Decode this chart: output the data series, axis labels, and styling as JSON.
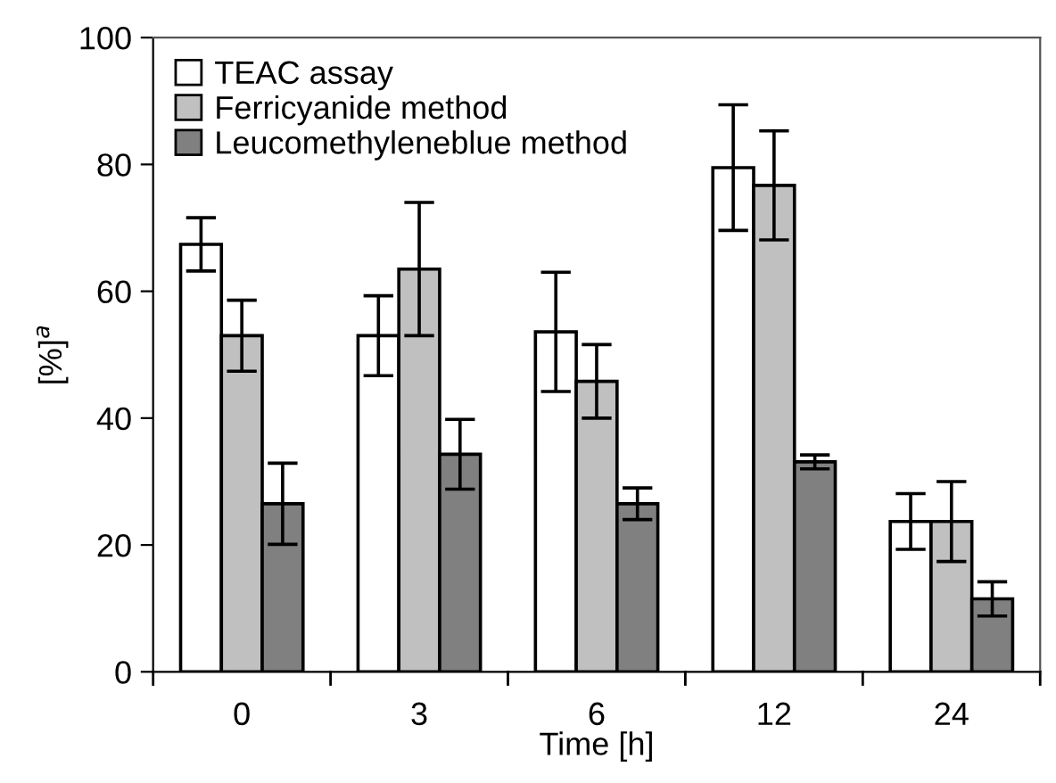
{
  "chart_data": {
    "type": "bar",
    "xlabel": "Time [h]",
    "ylabel": "[%]$^{a}$",
    "categories": [
      "0",
      "3",
      "6",
      "12",
      "24"
    ],
    "series": [
      {
        "name": "TEAC assay",
        "color": "#ffffff",
        "values": [
          67.4,
          53,
          53.6,
          79.5,
          23.7
        ],
        "errors": [
          4.2,
          6.3,
          9.4,
          9.9,
          4.4
        ]
      },
      {
        "name": "Ferricyanide method",
        "color": "#c0c0c0",
        "values": [
          53,
          63.5,
          45.8,
          76.7,
          23.7
        ],
        "errors": [
          5.6,
          10.5,
          5.8,
          8.6,
          6.3
        ]
      },
      {
        "name": "Leucomethyleneblue method",
        "color": "#808080",
        "values": [
          26.5,
          34.3,
          26.5,
          33.1,
          11.5
        ],
        "errors": [
          6.4,
          5.5,
          2.5,
          1.1,
          2.7
        ]
      }
    ],
    "ylim": [
      0,
      100
    ],
    "yticks": [
      0,
      20,
      40,
      60,
      80,
      100
    ],
    "grid": false,
    "legend": "top left"
  }
}
